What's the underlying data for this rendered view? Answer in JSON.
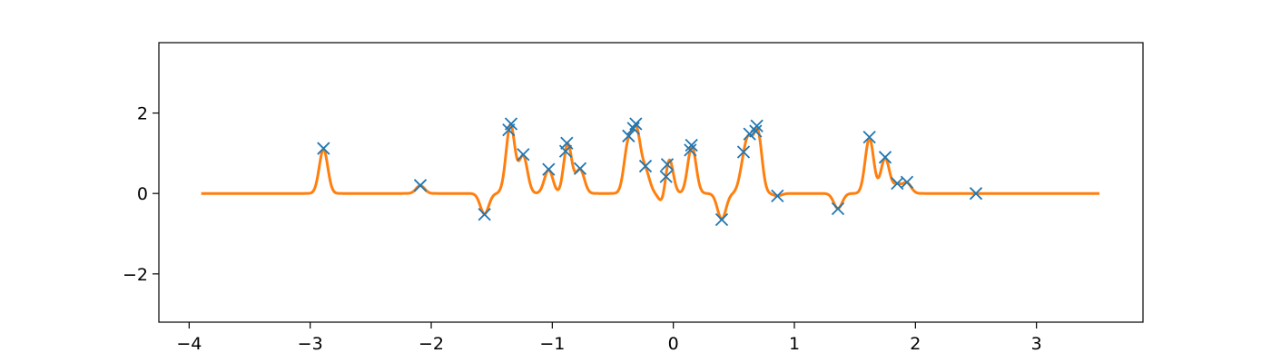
{
  "chart_data": {
    "type": "scatter",
    "title": "",
    "xlabel": "",
    "ylabel": "",
    "xlim": [
      -4.25,
      3.88
    ],
    "ylim": [
      -3.2,
      3.75
    ],
    "grid": false,
    "legend": "none",
    "x_ticks": [
      {
        "value": -4,
        "label": "−4"
      },
      {
        "value": -3,
        "label": "−3"
      },
      {
        "value": -2,
        "label": "−2"
      },
      {
        "value": -1,
        "label": "−1"
      },
      {
        "value": 0,
        "label": "0"
      },
      {
        "value": 1,
        "label": "1"
      },
      {
        "value": 2,
        "label": "2"
      },
      {
        "value": 3,
        "label": "3"
      }
    ],
    "y_ticks": [
      {
        "value": -2,
        "label": "−2"
      },
      {
        "value": 0,
        "label": "0"
      },
      {
        "value": 2,
        "label": "2"
      }
    ],
    "points": {
      "color": "#1f77b4",
      "marker": "x",
      "x": [
        -2.89,
        -2.09,
        -1.56,
        -1.36,
        -1.34,
        -1.24,
        -1.03,
        -0.89,
        -0.88,
        -0.77,
        -0.37,
        -0.33,
        -0.31,
        -0.23,
        -0.06,
        -0.05,
        0.14,
        0.15,
        0.4,
        0.58,
        0.63,
        0.68,
        0.69,
        0.86,
        1.36,
        1.62,
        1.75,
        1.85,
        1.93,
        2.5
      ],
      "y": [
        1.12,
        0.2,
        -0.52,
        1.58,
        1.73,
        0.97,
        0.6,
        1.05,
        1.25,
        0.62,
        1.43,
        1.62,
        1.73,
        0.68,
        0.42,
        0.72,
        1.08,
        1.2,
        -0.65,
        1.03,
        1.48,
        1.55,
        1.68,
        -0.06,
        -0.38,
        1.4,
        0.9,
        0.25,
        0.28,
        0.0
      ]
    },
    "curve": {
      "color": "#ff7f0e",
      "x_range": [
        -3.9,
        3.52
      ],
      "kernel_width": 0.035
    }
  }
}
